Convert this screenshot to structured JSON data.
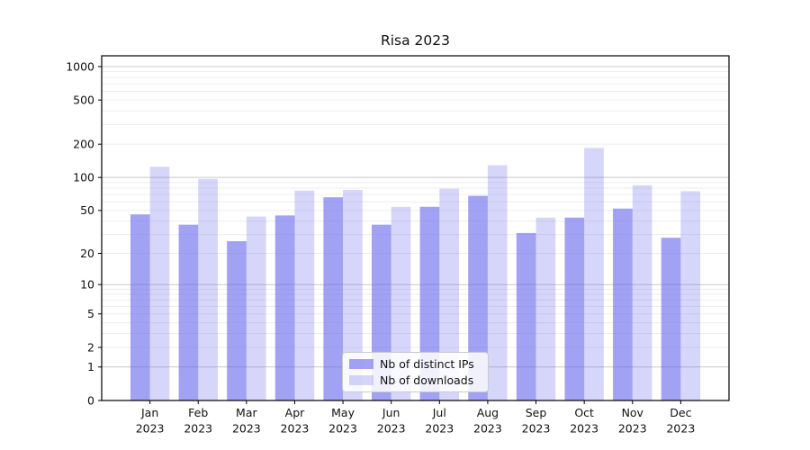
{
  "title": "Risa 2023",
  "chart_data": {
    "type": "bar",
    "title": "Risa 2023",
    "year_label": "2023",
    "categories": [
      "Jan",
      "Feb",
      "Mar",
      "Apr",
      "May",
      "Jun",
      "Jul",
      "Aug",
      "Sep",
      "Oct",
      "Nov",
      "Dec"
    ],
    "series": [
      {
        "name": "Nb of distinct IPs",
        "solid_color": "#a4a4f3",
        "fill": "rgba(105,105,237,0.62)",
        "values": [
          46,
          37,
          26,
          45,
          66,
          37,
          54,
          68,
          31,
          43,
          52,
          28
        ]
      },
      {
        "name": "Nb of downloads",
        "solid_color": "#d8d8f8",
        "fill": "rgba(105,105,237,0.27)",
        "values": [
          125,
          97,
          44,
          76,
          77,
          54,
          79,
          129,
          43,
          185,
          85,
          75
        ]
      }
    ],
    "yscale": "log1p",
    "ylim": [
      0,
      1250
    ],
    "y_ticks": [
      0,
      1,
      2,
      5,
      10,
      20,
      50,
      100,
      200,
      500,
      1000
    ],
    "y_gridlines_major": [
      1,
      10,
      100,
      1000
    ],
    "grid": "horizontal-only",
    "legend_position": "lower-center-inside"
  },
  "colors": {
    "background": "#ffffff",
    "axis": "#000000",
    "grid_major": "#c8c8c8",
    "grid_minor": "#ededed",
    "text": "#111111",
    "legend_border": "#c9c9c9"
  }
}
